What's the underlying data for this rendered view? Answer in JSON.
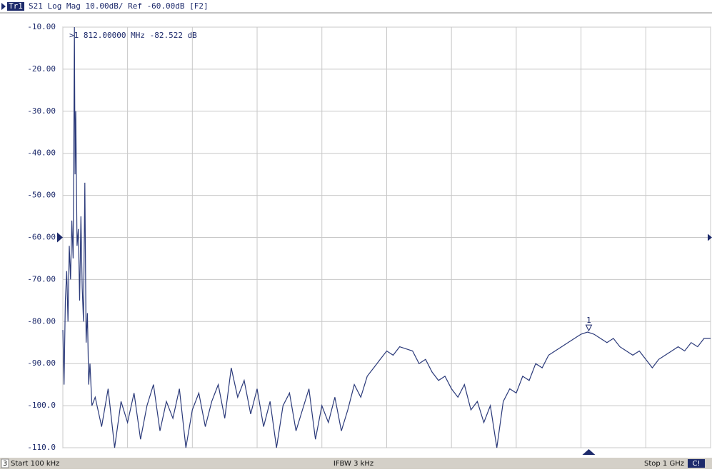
{
  "chart_data": {
    "type": "line",
    "header": {
      "trace": "Tr1",
      "text": "S21 Log Mag 10.00dB/ Ref -60.00dB [F2]"
    },
    "footer": {
      "channel": "3",
      "start": "Start 100 kHz",
      "ifbw": "IFBW 3 kHz",
      "stop": "Stop 1 GHz",
      "status": "C!"
    },
    "marker": {
      "label": "1",
      "readout": ">1  812.00000 MHz -82.522 dB",
      "x": 812,
      "y": -82.522
    },
    "ref_level": -60,
    "xlim": [
      0.1,
      1000
    ],
    "xticks": [
      0.1,
      100,
      200,
      300,
      400,
      500,
      600,
      700,
      800,
      900,
      1000
    ],
    "ylim": [
      -110,
      -10
    ],
    "yticks": [
      {
        "value": -10,
        "label": "-10.00"
      },
      {
        "value": -20,
        "label": "-20.00"
      },
      {
        "value": -30,
        "label": "-30.00"
      },
      {
        "value": -40,
        "label": "-40.00"
      },
      {
        "value": -50,
        "label": "-50.00"
      },
      {
        "value": -60,
        "label": "-60.00"
      },
      {
        "value": -70,
        "label": "-70.00"
      },
      {
        "value": -80,
        "label": "-80.00"
      },
      {
        "value": -90,
        "label": "-90.00"
      },
      {
        "value": -100,
        "label": "-100.0"
      },
      {
        "value": -110,
        "label": "-110.0"
      }
    ],
    "grid": true,
    "series": [
      {
        "name": "S21",
        "color": "#2b3a7a",
        "x": [
          0.1,
          2,
          4,
          6,
          8,
          10,
          12,
          14,
          16,
          17,
          18,
          19,
          20,
          22,
          24,
          26,
          28,
          30,
          32,
          34,
          36,
          38,
          40,
          42,
          45,
          50,
          60,
          70,
          80,
          90,
          100,
          110,
          120,
          130,
          140,
          150,
          160,
          170,
          180,
          190,
          200,
          210,
          220,
          230,
          240,
          250,
          260,
          270,
          280,
          290,
          300,
          310,
          320,
          330,
          340,
          350,
          360,
          370,
          380,
          390,
          400,
          410,
          420,
          430,
          440,
          450,
          460,
          470,
          480,
          490,
          500,
          510,
          520,
          530,
          540,
          550,
          560,
          570,
          580,
          590,
          600,
          610,
          620,
          630,
          640,
          650,
          660,
          670,
          680,
          690,
          700,
          710,
          720,
          730,
          740,
          750,
          760,
          770,
          780,
          790,
          800,
          810,
          820,
          830,
          840,
          850,
          860,
          870,
          880,
          890,
          900,
          910,
          920,
          930,
          940,
          950,
          960,
          970,
          980,
          990,
          1000
        ],
        "values": [
          -82,
          -95,
          -75,
          -68,
          -80,
          -62,
          -70,
          -56,
          -65,
          -40,
          -10,
          -45,
          -30,
          -62,
          -58,
          -75,
          -55,
          -72,
          -80,
          -47,
          -85,
          -78,
          -95,
          -90,
          -100,
          -98,
          -105,
          -96,
          -110,
          -99,
          -104,
          -97,
          -108,
          -100,
          -95,
          -106,
          -99,
          -103,
          -96,
          -110,
          -101,
          -97,
          -105,
          -99,
          -95,
          -103,
          -91,
          -98,
          -94,
          -102,
          -96,
          -105,
          -99,
          -110,
          -100,
          -97,
          -106,
          -101,
          -96,
          -108,
          -100,
          -104,
          -98,
          -106,
          -101,
          -95,
          -98,
          -93,
          -91,
          -89,
          -87,
          -88,
          -86,
          -86.5,
          -87,
          -90,
          -89,
          -92,
          -94,
          -93,
          -96,
          -98,
          -95,
          -101,
          -99,
          -104,
          -100,
          -110,
          -99,
          -96,
          -97,
          -93,
          -94,
          -90,
          -91,
          -88,
          -87,
          -86,
          -85,
          -84,
          -83,
          -82.5,
          -83,
          -84,
          -85,
          -84,
          -86,
          -87,
          -88,
          -87,
          -89,
          -91,
          -89,
          -88,
          -87,
          -86,
          -87,
          -85,
          -86,
          -84,
          -84
        ]
      }
    ]
  }
}
